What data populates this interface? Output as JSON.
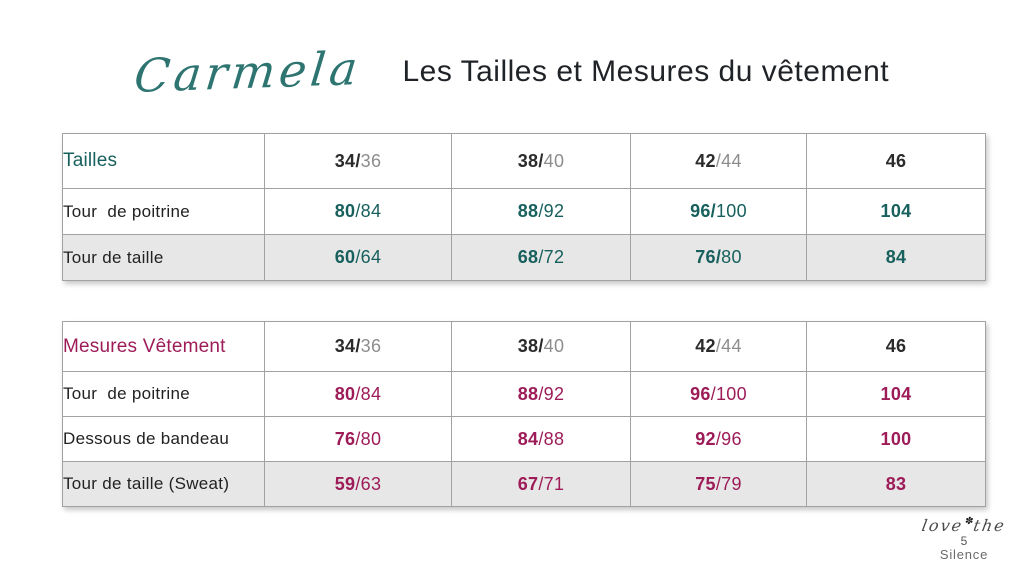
{
  "slide": {
    "brand_script": "Carmela",
    "title": "Les Tailles et Mesures du vêtement"
  },
  "colors": {
    "teal_accent": "#17605D",
    "magenta_accent": "#9D1C58",
    "header_strong": "#2B2B2B",
    "header_muted": "#8D8D8D",
    "shaded_row_bg": "#E7E7E7",
    "grid_border": "#A2A2A2"
  },
  "size_table": {
    "title": "Tailles",
    "header_cells": [
      {
        "strong": "34/",
        "rest": "36"
      },
      {
        "strong": "38/",
        "rest": "40"
      },
      {
        "strong": "42",
        "rest": "/44"
      },
      {
        "strong": "46",
        "rest": ""
      }
    ],
    "rows": [
      {
        "label": "Tour  de poitrine",
        "shaded": false,
        "cells": [
          {
            "strong": "80",
            "rest": "/84"
          },
          {
            "strong": "88",
            "rest": "/92"
          },
          {
            "strong": "96/",
            "rest": "100"
          },
          {
            "strong": "104",
            "rest": ""
          }
        ]
      },
      {
        "label": "Tour de taille",
        "shaded": true,
        "cells": [
          {
            "strong": "60",
            "rest": "/64"
          },
          {
            "strong": "68",
            "rest": "/72"
          },
          {
            "strong": "76/",
            "rest": "80"
          },
          {
            "strong": "84",
            "rest": ""
          }
        ]
      }
    ]
  },
  "garment_table": {
    "title": "Mesures Vêtement",
    "header_cells": [
      {
        "strong": "34/",
        "rest": "36"
      },
      {
        "strong": "38/",
        "rest": "40"
      },
      {
        "strong": "42",
        "rest": "/44"
      },
      {
        "strong": "46",
        "rest": ""
      }
    ],
    "rows": [
      {
        "label": "Tour  de poitrine",
        "shaded": false,
        "cells": [
          {
            "strong": "80",
            "rest": "/84"
          },
          {
            "strong": "88",
            "rest": "/92"
          },
          {
            "strong": "96",
            "rest": "/100"
          },
          {
            "strong": "104",
            "rest": ""
          }
        ]
      },
      {
        "label": "Dessous de bandeau",
        "shaded": false,
        "cells": [
          {
            "strong": "76",
            "rest": "/80"
          },
          {
            "strong": "84",
            "rest": "/88"
          },
          {
            "strong": "92",
            "rest": "/96"
          },
          {
            "strong": "100",
            "rest": ""
          }
        ]
      },
      {
        "label": "Tour de taille (Sweat)",
        "shaded": true,
        "cells": [
          {
            "strong": "59",
            "rest": "/63"
          },
          {
            "strong": "67",
            "rest": "/71"
          },
          {
            "strong": "75",
            "rest": "/79"
          },
          {
            "strong": "83",
            "rest": ""
          }
        ]
      }
    ]
  },
  "footer": {
    "script_before": "love",
    "flower": "✽",
    "script_after": "the",
    "page_number": "5",
    "brand_word": "Silence"
  }
}
